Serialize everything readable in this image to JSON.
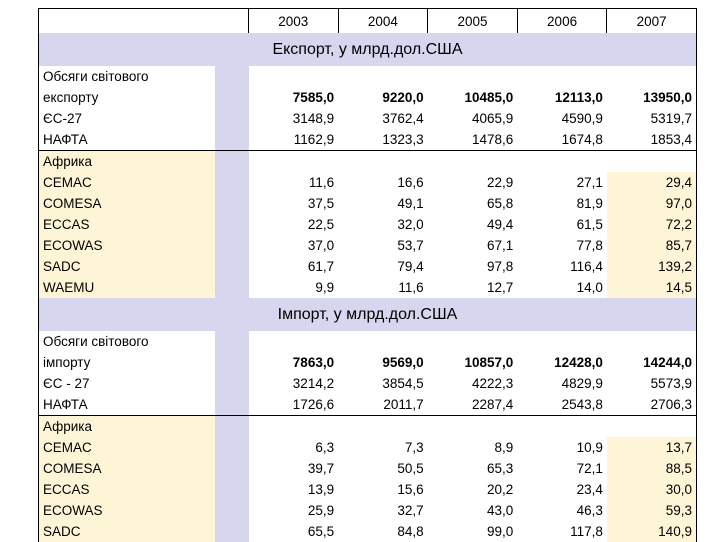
{
  "years": [
    "2003",
    "2004",
    "2005",
    "2006",
    "2007"
  ],
  "export": {
    "title": "Експорт,  у млрд.дол.США",
    "world": {
      "label1": "Обсяги світового",
      "label2": "експорту",
      "values": [
        "7585,0",
        "9220,0",
        "10485,0",
        "12113,0",
        "13950,0"
      ]
    },
    "rows": [
      {
        "label": "ЄС-27",
        "values": [
          "3148,9",
          "3762,4",
          "4065,9",
          "4590,9",
          "5319,7"
        ]
      },
      {
        "label": "НАФТА",
        "values": [
          "1162,9",
          "1323,3",
          "1478,6",
          "1674,8",
          "1853,4"
        ]
      }
    ],
    "africa_label": "Африка",
    "africa": [
      {
        "label": "CEMAC",
        "values": [
          "11,6",
          "16,6",
          "22,9",
          "27,1",
          "29,4"
        ]
      },
      {
        "label": "COMESA",
        "values": [
          "37,5",
          "49,1",
          "65,8",
          "81,9",
          "97,0"
        ]
      },
      {
        "label": "ECCAS",
        "values": [
          "22,5",
          "32,0",
          "49,4",
          "61,5",
          "72,2"
        ]
      },
      {
        "label": "ECOWAS",
        "values": [
          "37,0",
          "53,7",
          "67,1",
          "77,8",
          "85,7"
        ]
      },
      {
        "label": "SADC",
        "values": [
          "61,7",
          "79,4",
          "97,8",
          "116,4",
          "139,2"
        ]
      },
      {
        "label": "WAEMU",
        "values": [
          "9,9",
          "11,6",
          "12,7",
          "14,0",
          "14,5"
        ]
      }
    ]
  },
  "import": {
    "title": "Імпорт, у млрд.дол.США",
    "world": {
      "label1": "Обсяги світового",
      "label2": "імпорту",
      "values": [
        "7863,0",
        "9569,0",
        "10857,0",
        "12428,0",
        "14244,0"
      ]
    },
    "rows": [
      {
        "label": "ЄС - 27",
        "values": [
          "3214,2",
          "3854,5",
          "4222,3",
          "4829,9",
          "5573,9"
        ]
      },
      {
        "label": "НАФТА",
        "values": [
          "1726,6",
          "2011,7",
          "2287,4",
          "2543,8",
          "2706,3"
        ]
      }
    ],
    "africa_label": "Африка",
    "africa": [
      {
        "label": "CEMAC",
        "values": [
          "6,3",
          "7,3",
          "8,9",
          "10,9",
          "13,7"
        ]
      },
      {
        "label": "COMESA",
        "values": [
          "39,7",
          "50,5",
          "65,3",
          "72,1",
          "88,5"
        ]
      },
      {
        "label": "ECCAS",
        "values": [
          "13,9",
          "15,6",
          "20,2",
          "23,4",
          "30,0"
        ]
      },
      {
        "label": "ECOWAS",
        "values": [
          "25,9",
          "32,7",
          "43,0",
          "46,3",
          "59,3"
        ]
      },
      {
        "label": "SADC",
        "values": [
          "65,5",
          "84,8",
          "99,0",
          "117,8",
          "140,9"
        ]
      }
    ]
  }
}
